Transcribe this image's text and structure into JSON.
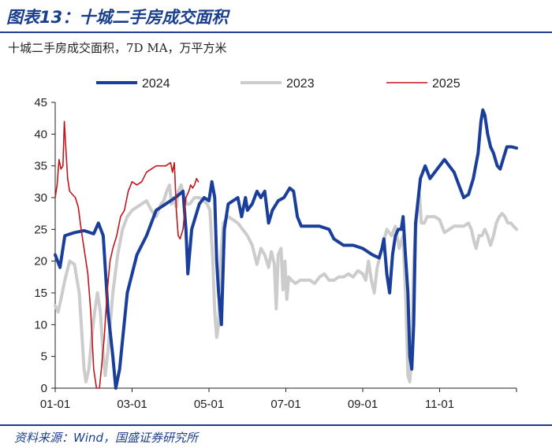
{
  "header": {
    "title": "图表13：十城二手房成交面积",
    "subtitle": "十城二手房成交面积，7D MA，万平方米"
  },
  "footer": {
    "source": "资料来源：Wind，国盛证券研究所"
  },
  "chart_data": {
    "type": "line",
    "title": "",
    "xlabel": "",
    "ylabel": "",
    "x_ticks": [
      "01-01",
      "03-01",
      "05-01",
      "07-01",
      "09-01",
      "11-01"
    ],
    "y_ticks": [
      0,
      5,
      10,
      15,
      20,
      25,
      30,
      35,
      40,
      45
    ],
    "ylim": [
      0,
      45
    ],
    "grid": false,
    "legend_position": "top",
    "series": [
      {
        "name": "2024",
        "color": "#1a3f9a",
        "line_width": 4,
        "points": [
          [
            0,
            21
          ],
          [
            5,
            19
          ],
          [
            10,
            24
          ],
          [
            20,
            24.5
          ],
          [
            30,
            24.8
          ],
          [
            40,
            24.3
          ],
          [
            45,
            26
          ],
          [
            50,
            24
          ],
          [
            55,
            12
          ],
          [
            60,
            5
          ],
          [
            63,
            0
          ],
          [
            67,
            3
          ],
          [
            75,
            15
          ],
          [
            85,
            21
          ],
          [
            95,
            24
          ],
          [
            105,
            28
          ],
          [
            115,
            29
          ],
          [
            125,
            30
          ],
          [
            133,
            31
          ],
          [
            136,
            25
          ],
          [
            138,
            18
          ],
          [
            142,
            25
          ],
          [
            146,
            27
          ],
          [
            150,
            29
          ],
          [
            155,
            30
          ],
          [
            160,
            29.5
          ],
          [
            163,
            32.5
          ],
          [
            166,
            30
          ],
          [
            168,
            20
          ],
          [
            170,
            15
          ],
          [
            173,
            10
          ],
          [
            176,
            25
          ],
          [
            180,
            29
          ],
          [
            185,
            29.5
          ],
          [
            190,
            30
          ],
          [
            194,
            27
          ],
          [
            198,
            30
          ],
          [
            200,
            28
          ],
          [
            205,
            29
          ],
          [
            210,
            31
          ],
          [
            214,
            30
          ],
          [
            218,
            31
          ],
          [
            222,
            26
          ],
          [
            226,
            28
          ],
          [
            232,
            29.5
          ],
          [
            238,
            30
          ],
          [
            244,
            31.5
          ],
          [
            248,
            31
          ],
          [
            252,
            27
          ],
          [
            256,
            25.5
          ],
          [
            265,
            25.5
          ],
          [
            275,
            25.5
          ],
          [
            285,
            25
          ],
          [
            290,
            23.5
          ],
          [
            300,
            22.5
          ],
          [
            310,
            22.5
          ],
          [
            320,
            22
          ],
          [
            330,
            21
          ],
          [
            337,
            20.5
          ],
          [
            340,
            22
          ],
          [
            342,
            23.5
          ],
          [
            345,
            18
          ],
          [
            348,
            15
          ],
          [
            351,
            21
          ],
          [
            354,
            24
          ],
          [
            357,
            25
          ],
          [
            360,
            25
          ],
          [
            362,
            27
          ],
          [
            364,
            22
          ],
          [
            367,
            15
          ],
          [
            369,
            5
          ],
          [
            371,
            3
          ],
          [
            373,
            10
          ],
          [
            375,
            26
          ],
          [
            380,
            33
          ],
          [
            385,
            35
          ],
          [
            390,
            33
          ],
          [
            395,
            34
          ],
          [
            400,
            35
          ],
          [
            405,
            36
          ],
          [
            410,
            35
          ],
          [
            415,
            34
          ],
          [
            420,
            32
          ],
          [
            425,
            30
          ],
          [
            430,
            30.5
          ],
          [
            435,
            33
          ],
          [
            440,
            37
          ],
          [
            443,
            42
          ],
          [
            445,
            43.8
          ],
          [
            447,
            43
          ],
          [
            450,
            40
          ],
          [
            453,
            38
          ],
          [
            456,
            37
          ],
          [
            460,
            35
          ],
          [
            463,
            34.5
          ],
          [
            466,
            36
          ],
          [
            470,
            38
          ],
          [
            475,
            38
          ],
          [
            480,
            37.8
          ]
        ]
      },
      {
        "name": "2023",
        "color": "#cccccc",
        "line_width": 4,
        "points": [
          [
            0,
            13
          ],
          [
            3,
            12
          ],
          [
            6,
            14
          ],
          [
            10,
            17
          ],
          [
            15,
            20
          ],
          [
            20,
            19.5
          ],
          [
            25,
            15
          ],
          [
            28,
            8
          ],
          [
            30,
            3
          ],
          [
            32,
            1
          ],
          [
            35,
            3
          ],
          [
            38,
            8
          ],
          [
            41,
            12
          ],
          [
            44,
            15
          ],
          [
            47,
            12
          ],
          [
            50,
            5
          ],
          [
            52,
            2
          ],
          [
            55,
            6
          ],
          [
            60,
            15
          ],
          [
            65,
            21
          ],
          [
            70,
            25
          ],
          [
            75,
            27
          ],
          [
            80,
            28
          ],
          [
            85,
            28.5
          ],
          [
            90,
            29
          ],
          [
            95,
            29.5
          ],
          [
            100,
            28
          ],
          [
            105,
            27
          ],
          [
            110,
            29
          ],
          [
            113,
            29.5
          ],
          [
            116,
            31
          ],
          [
            119,
            32
          ],
          [
            121,
            29
          ],
          [
            123,
            30
          ],
          [
            126,
            28.5
          ],
          [
            128,
            31
          ],
          [
            131,
            32
          ],
          [
            134,
            30
          ],
          [
            137,
            29
          ],
          [
            140,
            29
          ],
          [
            145,
            30
          ],
          [
            150,
            30
          ],
          [
            155,
            29.5
          ],
          [
            158,
            29
          ],
          [
            161,
            28
          ],
          [
            164,
            20
          ],
          [
            166,
            12
          ],
          [
            168,
            8
          ],
          [
            170,
            10
          ],
          [
            172,
            20
          ],
          [
            175,
            26
          ],
          [
            180,
            27
          ],
          [
            185,
            26.5
          ],
          [
            190,
            26
          ],
          [
            195,
            25
          ],
          [
            200,
            24
          ],
          [
            205,
            22.5
          ],
          [
            210,
            19.5
          ],
          [
            214,
            22
          ],
          [
            218,
            21
          ],
          [
            222,
            19
          ],
          [
            225,
            21.5
          ],
          [
            228,
            19.5
          ],
          [
            230,
            12.5
          ],
          [
            232,
            21
          ],
          [
            235,
            22
          ],
          [
            237,
            15.5
          ],
          [
            239,
            20
          ],
          [
            241,
            14
          ],
          [
            243,
            17.5
          ],
          [
            246,
            17
          ],
          [
            250,
            16.5
          ],
          [
            255,
            17
          ],
          [
            260,
            17
          ],
          [
            265,
            17
          ],
          [
            270,
            16.5
          ],
          [
            275,
            17.5
          ],
          [
            280,
            18
          ],
          [
            285,
            17
          ],
          [
            290,
            17
          ],
          [
            295,
            17.5
          ],
          [
            300,
            17.5
          ],
          [
            305,
            18
          ],
          [
            310,
            17.5
          ],
          [
            315,
            18.5
          ],
          [
            320,
            18
          ],
          [
            323,
            17
          ],
          [
            326,
            20
          ],
          [
            329,
            17
          ],
          [
            332,
            15
          ],
          [
            335,
            19
          ],
          [
            340,
            22
          ],
          [
            345,
            25
          ],
          [
            350,
            24
          ],
          [
            354,
            25.5
          ],
          [
            358,
            22
          ],
          [
            362,
            24
          ],
          [
            365,
            13
          ],
          [
            367,
            2
          ],
          [
            369,
            1
          ],
          [
            371,
            5
          ],
          [
            373,
            20
          ],
          [
            375,
            25
          ],
          [
            377,
            28
          ],
          [
            379,
            30.5
          ],
          [
            381,
            26
          ],
          [
            384,
            26
          ],
          [
            387,
            27
          ],
          [
            390,
            27
          ],
          [
            395,
            27
          ],
          [
            400,
            26.5
          ],
          [
            405,
            24.5
          ],
          [
            410,
            25
          ],
          [
            415,
            25.5
          ],
          [
            420,
            25.5
          ],
          [
            425,
            25.5
          ],
          [
            430,
            26
          ],
          [
            433,
            25
          ],
          [
            436,
            23
          ],
          [
            438,
            22
          ],
          [
            441,
            24
          ],
          [
            444,
            24
          ],
          [
            447,
            25
          ],
          [
            450,
            24
          ],
          [
            453,
            22.5
          ],
          [
            456,
            24
          ],
          [
            459,
            26
          ],
          [
            462,
            27
          ],
          [
            465,
            27.5
          ],
          [
            468,
            27
          ],
          [
            471,
            26
          ],
          [
            474,
            26
          ],
          [
            477,
            25.5
          ],
          [
            480,
            25
          ]
        ]
      },
      {
        "name": "2025",
        "color": "#c0171d",
        "line_width": 1.6,
        "points": [
          [
            0,
            30
          ],
          [
            2,
            32
          ],
          [
            4,
            36
          ],
          [
            6,
            34.5
          ],
          [
            8,
            35
          ],
          [
            9.5,
            42
          ],
          [
            11,
            38
          ],
          [
            13,
            33
          ],
          [
            15,
            31
          ],
          [
            18,
            30.5
          ],
          [
            21,
            30
          ],
          [
            24,
            28.5
          ],
          [
            27,
            25
          ],
          [
            31,
            21
          ],
          [
            34,
            18
          ],
          [
            37,
            12
          ],
          [
            40,
            3
          ],
          [
            43,
            0
          ],
          [
            46,
            0
          ],
          [
            48,
            3
          ],
          [
            51,
            8
          ],
          [
            54,
            15
          ],
          [
            57,
            20
          ],
          [
            60,
            22
          ],
          [
            64,
            24
          ],
          [
            68,
            27
          ],
          [
            72,
            28
          ],
          [
            76,
            31
          ],
          [
            80,
            32.5
          ],
          [
            85,
            32
          ],
          [
            90,
            32.5
          ],
          [
            95,
            34
          ],
          [
            100,
            34.5
          ],
          [
            105,
            35
          ],
          [
            110,
            35
          ],
          [
            115,
            35
          ],
          [
            120,
            35.5
          ],
          [
            122,
            34
          ],
          [
            124,
            35.5
          ],
          [
            126,
            28
          ],
          [
            128,
            24
          ],
          [
            130,
            23.5
          ],
          [
            133,
            25
          ],
          [
            136,
            30
          ],
          [
            139,
            31
          ],
          [
            141,
            32
          ],
          [
            143,
            31.5
          ],
          [
            145,
            32
          ],
          [
            147,
            33
          ],
          [
            149,
            32.5
          ]
        ]
      }
    ]
  }
}
